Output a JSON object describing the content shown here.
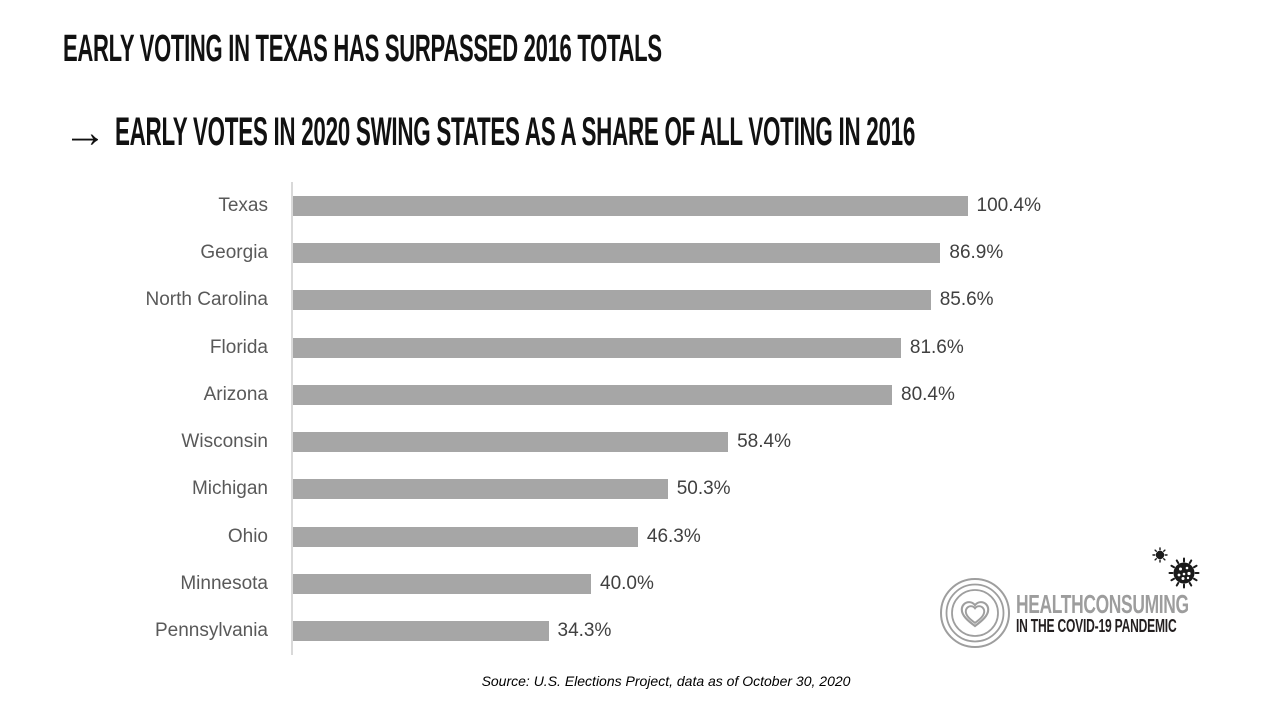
{
  "slide": {
    "arrow_glyph": "→"
  },
  "chart_data": {
    "type": "bar",
    "orientation": "horizontal",
    "title": "EARLY VOTING IN TEXAS HAS SURPASSED 2016 TOTALS",
    "subtitle": "EARLY VOTES IN 2020 SWING STATES AS A SHARE OF ALL VOTING IN 2016",
    "categories": [
      "Texas",
      "Georgia",
      "North Carolina",
      "Florida",
      "Arizona",
      "Wisconsin",
      "Michigan",
      "Ohio",
      "Minnesota",
      "Pennsylvania"
    ],
    "values": [
      100.4,
      86.9,
      85.6,
      81.6,
      80.4,
      58.4,
      50.3,
      46.3,
      40.0,
      34.3
    ],
    "value_labels": [
      "100.4%",
      "86.9%",
      "85.6%",
      "81.6%",
      "80.4%",
      "58.4%",
      "50.3%",
      "46.3%",
      "40.0%",
      "34.3%"
    ],
    "xlabel": "",
    "ylabel": "",
    "xlim": [
      0,
      105
    ],
    "grid": false,
    "legend": "none",
    "bar_color": "#a6a6a6",
    "axis_line_color": "#d9d9d9",
    "category_label_color": "#595959",
    "value_label_color": "#404040",
    "source": "Source: U.S. Elections Project, data as of October 30, 2020"
  },
  "logo": {
    "brand": "HEALTHCONSUMING",
    "tagline": "IN THE COVID-19 PANDEMIC",
    "brand_color": "#9d9d9d",
    "tagline_color": "#231f20",
    "icons": [
      "heart-rings-icon",
      "coronavirus-icon"
    ]
  }
}
